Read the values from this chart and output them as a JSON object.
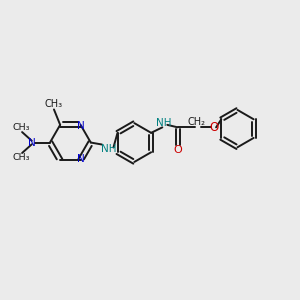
{
  "bg_color": "#ebebeb",
  "bond_color": "#1a1a1a",
  "nitrogen_color": "#0000cc",
  "oxygen_color": "#cc0000",
  "nh_color": "#008080",
  "figsize": [
    3.0,
    3.0
  ],
  "dpi": 100,
  "xlim": [
    0,
    12
  ],
  "ylim": [
    0,
    12
  ]
}
